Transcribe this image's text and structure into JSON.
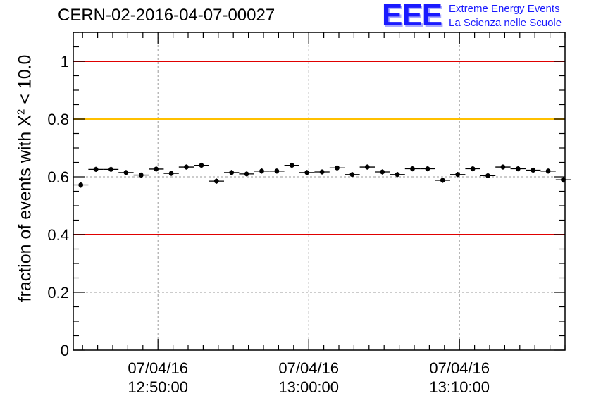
{
  "header": {
    "run_title": "CERN-02-2016-04-07-00027",
    "logo_mark": "EEE",
    "logo_line1": "Extreme Energy Events",
    "logo_line2": "La Scienza nelle Scuole"
  },
  "chart_data": {
    "type": "scatter",
    "title": "CERN-02-2016-04-07-00027",
    "xlabel": "",
    "ylabel_prefix": "fraction of events with X",
    "ylabel_sup": "2",
    "ylabel_suffix": " < 10.0",
    "ylim": [
      0,
      1.1
    ],
    "yticks": [
      0,
      0.2,
      0.4,
      0.6,
      0.8,
      1
    ],
    "ytick_labels": [
      "0",
      "0.2",
      "0.4",
      "0.6",
      "0.8",
      "1"
    ],
    "x_range_minutes": [
      "12:44:23",
      "13:17:00"
    ],
    "xticks": [
      {
        "time": "12:50:00",
        "date": "07/04/16"
      },
      {
        "time": "13:00:00",
        "date": "07/04/16"
      },
      {
        "time": "13:10:00",
        "date": "07/04/16"
      }
    ],
    "grid": true,
    "reference_lines": [
      {
        "y": 1.0,
        "color": "#e00000"
      },
      {
        "y": 0.8,
        "color": "#ffc000"
      },
      {
        "y": 0.4,
        "color": "#e00000"
      }
    ],
    "marker_color": "#000000",
    "series": [
      {
        "x": [
          "12:44:53",
          "12:45:53",
          "12:46:53",
          "12:47:53",
          "12:48:53",
          "12:49:53",
          "12:50:53",
          "12:51:53",
          "12:52:53",
          "12:53:53",
          "12:54:53",
          "12:55:53",
          "12:56:53",
          "12:57:53",
          "12:58:53",
          "12:59:53",
          "13:00:53",
          "13:01:53",
          "13:02:53",
          "13:03:53",
          "13:04:53",
          "13:05:53",
          "13:06:53",
          "13:07:53",
          "13:08:53",
          "13:09:53",
          "13:10:53",
          "13:11:53",
          "13:12:53",
          "13:13:53",
          "13:14:53",
          "13:15:53",
          "13:16:53"
        ],
        "values": [
          0.572,
          0.626,
          0.626,
          0.615,
          0.606,
          0.627,
          0.612,
          0.634,
          0.64,
          0.585,
          0.615,
          0.61,
          0.62,
          0.62,
          0.64,
          0.615,
          0.617,
          0.631,
          0.608,
          0.634,
          0.617,
          0.608,
          0.628,
          0.628,
          0.588,
          0.608,
          0.628,
          0.604,
          0.634,
          0.628,
          0.623,
          0.62,
          0.59
        ],
        "errors": [
          0.01,
          0.009,
          0.009,
          0.009,
          0.009,
          0.009,
          0.009,
          0.009,
          0.009,
          0.009,
          0.009,
          0.009,
          0.009,
          0.009,
          0.009,
          0.009,
          0.009,
          0.009,
          0.009,
          0.009,
          0.009,
          0.009,
          0.009,
          0.009,
          0.009,
          0.009,
          0.009,
          0.009,
          0.009,
          0.009,
          0.009,
          0.009,
          0.01
        ]
      }
    ]
  }
}
